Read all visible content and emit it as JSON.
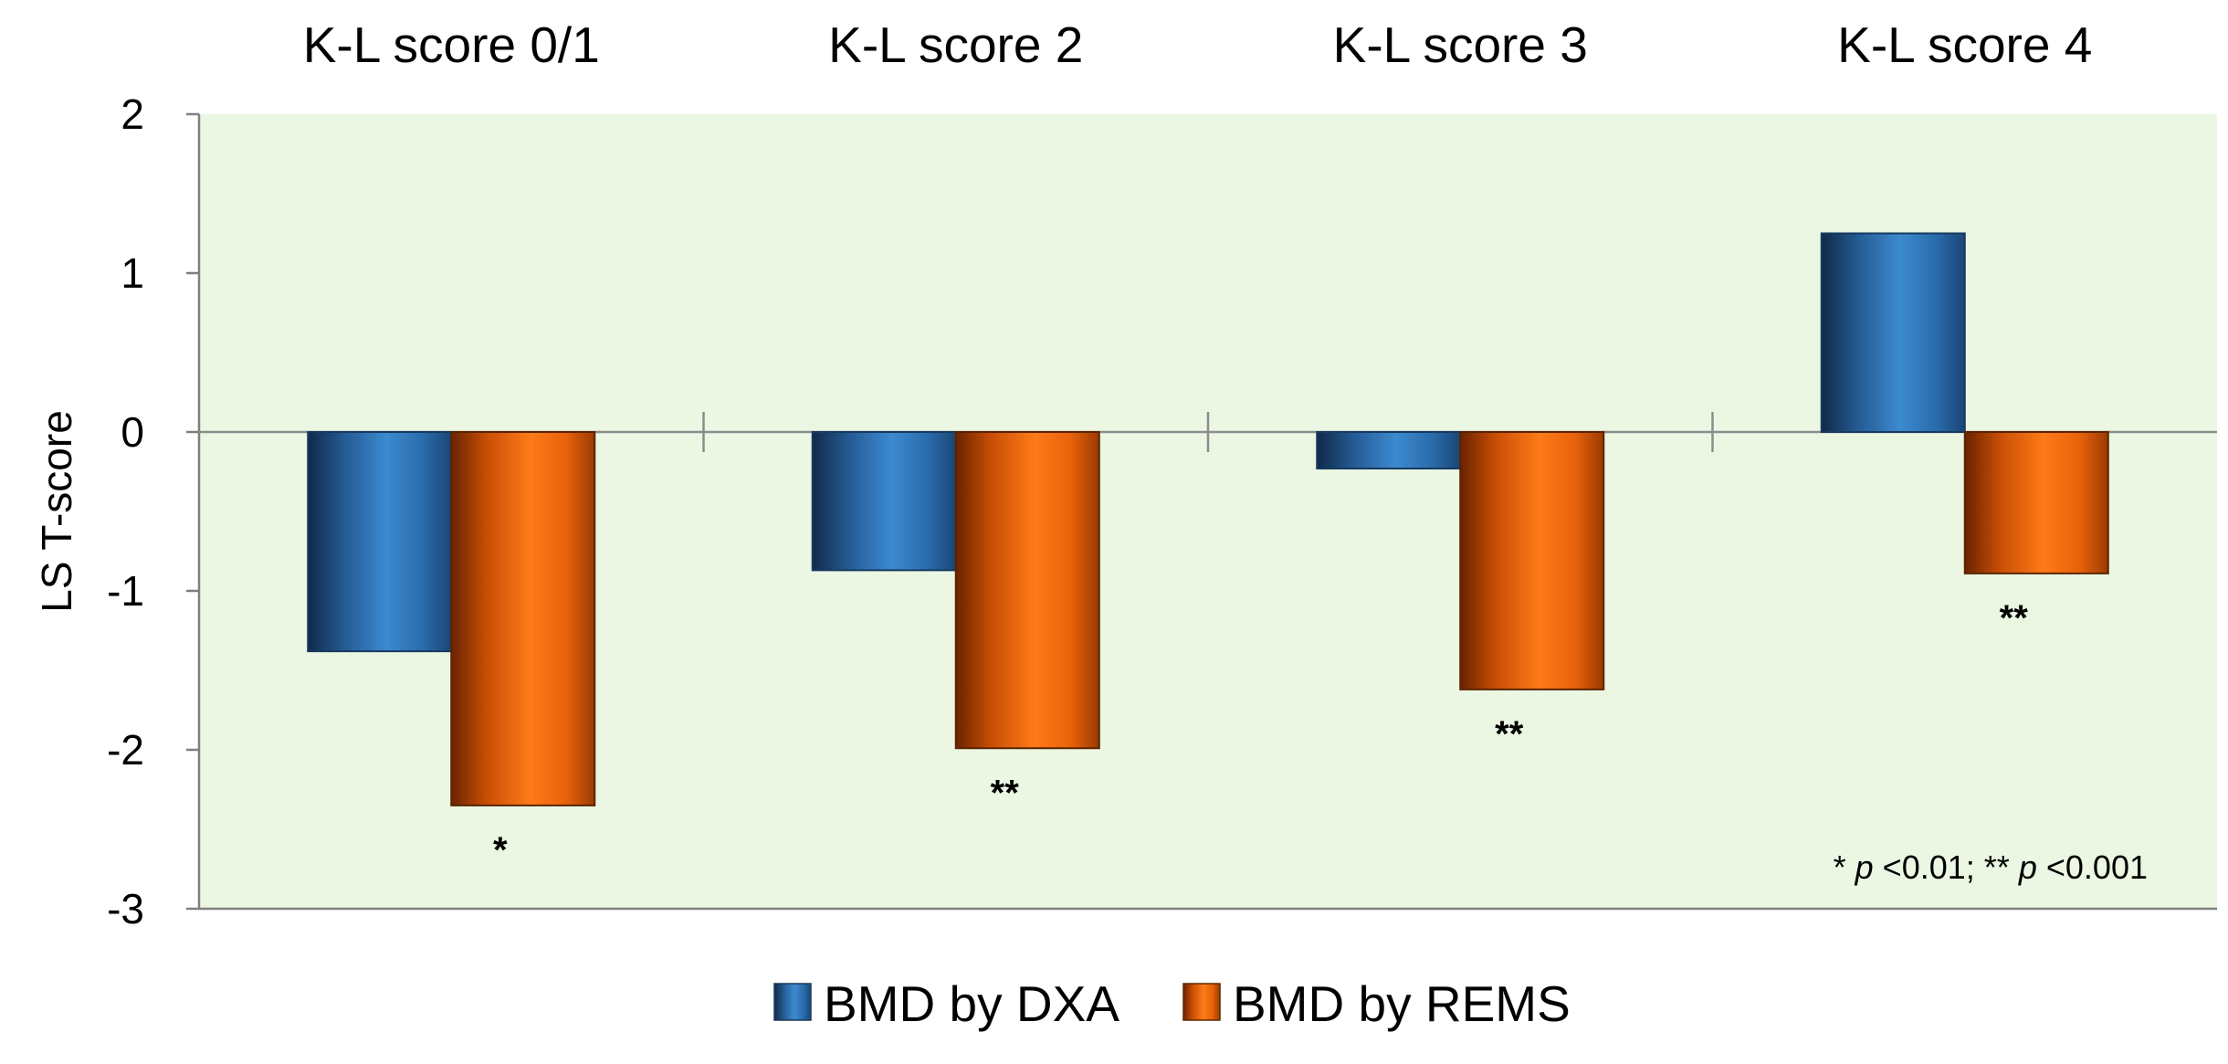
{
  "chart_data": {
    "type": "bar",
    "title": "",
    "xlabel": "",
    "ylabel": "LS T-score",
    "ylim": [
      -3,
      2
    ],
    "yticks": [
      "2",
      "1",
      "0",
      "-1",
      "-2",
      "-3"
    ],
    "ytick_values": [
      2,
      1,
      0,
      -1,
      -2,
      -3
    ],
    "categories": [
      "K-L score 0/1",
      "K-L score 2",
      "K-L score 3",
      "K-L score 4"
    ],
    "series": [
      {
        "name": "BMD by DXA",
        "values": [
          -1.38,
          -0.87,
          -0.23,
          1.25
        ],
        "color": "#2e75b6"
      },
      {
        "name": "BMD by REMS",
        "values": [
          -2.35,
          -1.99,
          -1.62,
          -0.89
        ],
        "color": "#f26a10"
      }
    ],
    "significance": [
      "*",
      "**",
      "**",
      "**"
    ],
    "note": {
      "star1": "*",
      "p1": "p",
      "thr1": "<0.01;",
      "star2": "**",
      "p2": "p",
      "thr2": "<0.001"
    },
    "colors": {
      "plot_bg": "#ebf7e3",
      "dxa": "#2e75b6",
      "rems": "#f26a10"
    }
  }
}
